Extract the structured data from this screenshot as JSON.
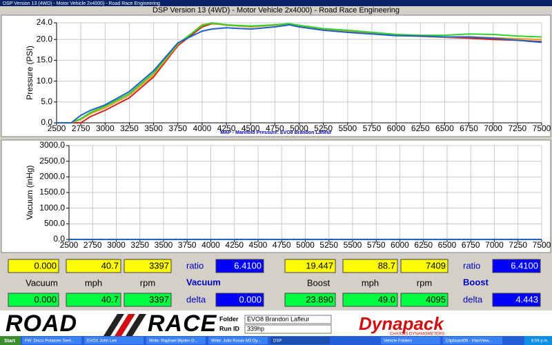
{
  "window": {
    "title": "DSP Version 13 (4WD) - Motor Vehicle 2x4000) - Road Race Engineering"
  },
  "chart_data": [
    {
      "type": "line",
      "title": "DSP Version 13 (4WD) - Motor Vehicle 2x4000) - Road Race Engineering",
      "y_label": "Pressure (PSI)",
      "x": [
        2500,
        2650,
        2750,
        2850,
        3000,
        3250,
        3500,
        3750,
        4000,
        4100,
        4250,
        4500,
        4750,
        4900,
        5000,
        5250,
        5500,
        5750,
        6000,
        6250,
        6500,
        6750,
        7000,
        7250,
        7500
      ],
      "series": [
        {
          "color": "#d42020",
          "values": [
            0,
            0,
            0,
            1.5,
            3,
            6,
            11,
            18.5,
            23,
            23.8,
            23.5,
            23,
            23.5,
            23.7,
            23.3,
            22.5,
            22,
            21.5,
            21,
            20.8,
            20.5,
            20.3,
            20,
            19.8,
            19.5
          ]
        },
        {
          "color": "#e0a020",
          "values": [
            0,
            0,
            0.8,
            2.2,
            3.6,
            6.6,
            11.5,
            18.8,
            23.5,
            23.9,
            23.4,
            23,
            23.4,
            23.6,
            23.2,
            22.4,
            22,
            21.6,
            21,
            20.7,
            20.5,
            20.6,
            20.4,
            20.2,
            20
          ]
        },
        {
          "color": "#30d030",
          "values": [
            0,
            0,
            1,
            2.5,
            4,
            7,
            12,
            19,
            23.3,
            24,
            23.5,
            23.2,
            23.5,
            23.8,
            23.4,
            22.6,
            22.2,
            21.7,
            21.2,
            21,
            21,
            21.3,
            21.2,
            20.8,
            20.6
          ]
        },
        {
          "color": "#2060c8",
          "values": [
            0,
            0,
            1.8,
            3,
            4.3,
            7.5,
            12.5,
            19.2,
            22,
            22.5,
            22.8,
            22.5,
            23,
            23.5,
            23,
            22.2,
            21.7,
            21.3,
            20.9,
            20.8,
            20.6,
            20.6,
            20.3,
            19.8,
            19.3
          ]
        }
      ],
      "xlim": [
        2500,
        7500
      ],
      "xticks": [
        2500,
        2750,
        3000,
        3250,
        3500,
        3750,
        4000,
        4250,
        4500,
        4750,
        5000,
        5250,
        5500,
        5750,
        6000,
        6250,
        6500,
        6750,
        7000,
        7250,
        7500
      ],
      "ylim": [
        0,
        24
      ],
      "yticks": [
        {
          "value": 0,
          "label": "0.0"
        },
        {
          "value": 5,
          "label": "5.0"
        },
        {
          "value": 10,
          "label": "10.0"
        },
        {
          "value": 15,
          "label": "15.0"
        },
        {
          "value": 20,
          "label": "20.0"
        },
        {
          "value": 24,
          "label": "24.0"
        }
      ],
      "grid": true
    },
    {
      "type": "line",
      "title": "MAP - Manifold Pressure: EVO8 Brandon Lafleur",
      "y_label": "Vacuum (inHg)",
      "x": [
        2500,
        7500
      ],
      "series": [
        {
          "color": "#2060c8",
          "values": [
            0,
            0
          ]
        }
      ],
      "xlim": [
        2500,
        7500
      ],
      "xticks": [
        2500,
        2750,
        3000,
        3250,
        3500,
        3750,
        4000,
        4250,
        4500,
        4750,
        5000,
        5250,
        5500,
        5750,
        6000,
        6250,
        6500,
        6750,
        7000,
        7250,
        7500
      ],
      "ylim": [
        0,
        3000
      ],
      "yticks": [
        {
          "value": 0,
          "label": "0.0"
        },
        {
          "value": 500,
          "label": "500.0"
        },
        {
          "value": 1000,
          "label": "1000.0"
        },
        {
          "value": 1500,
          "label": "1500.0"
        },
        {
          "value": 2000,
          "label": "2000.0"
        },
        {
          "value": 2500,
          "label": "2500.0"
        },
        {
          "value": 3000,
          "label": "3000.0"
        }
      ],
      "grid": true
    }
  ],
  "readouts": [
    {
      "values1": [
        "0.000",
        "40.7",
        "3397"
      ],
      "ratio_label": "ratio",
      "ratio": "6.4100",
      "labels": [
        "Vacuum",
        "mph",
        "rpm"
      ],
      "mode": "Vacuum",
      "values2": [
        "0.000",
        "40.7",
        "3397"
      ],
      "delta_label": "delta",
      "delta": "0.000"
    },
    {
      "values1": [
        "19.447",
        "88.7",
        "7409"
      ],
      "ratio_label": "ratio",
      "ratio": "6.4100",
      "labels": [
        "Boost",
        "mph",
        "rpm"
      ],
      "mode": "Boost",
      "values2": [
        "23.890",
        "49.0",
        "4095"
      ],
      "delta_label": "delta",
      "delta": "4.443"
    }
  ],
  "footer": {
    "logo_left": "ROAD",
    "logo_right": "RACE",
    "folder_label": "Folder",
    "folder": "EVO8 Brandon Lafleur",
    "runid_label": "Run ID",
    "runid": "339hp",
    "brand": "Dynapack",
    "brand_sub": "CHASSIS DYNAMOMETERS"
  },
  "taskbar": {
    "start": "Start",
    "items": [
      "FW: Disco Potatoes Sent...",
      "EVOX John Lee",
      "Write: Raphael Blyden D...",
      "Write: Julio Rosas M3 Dy...",
      "DSP",
      "Vehicle Folders",
      "Clipboard06 - IrfanView..."
    ],
    "clock": "8:59 p.m."
  }
}
